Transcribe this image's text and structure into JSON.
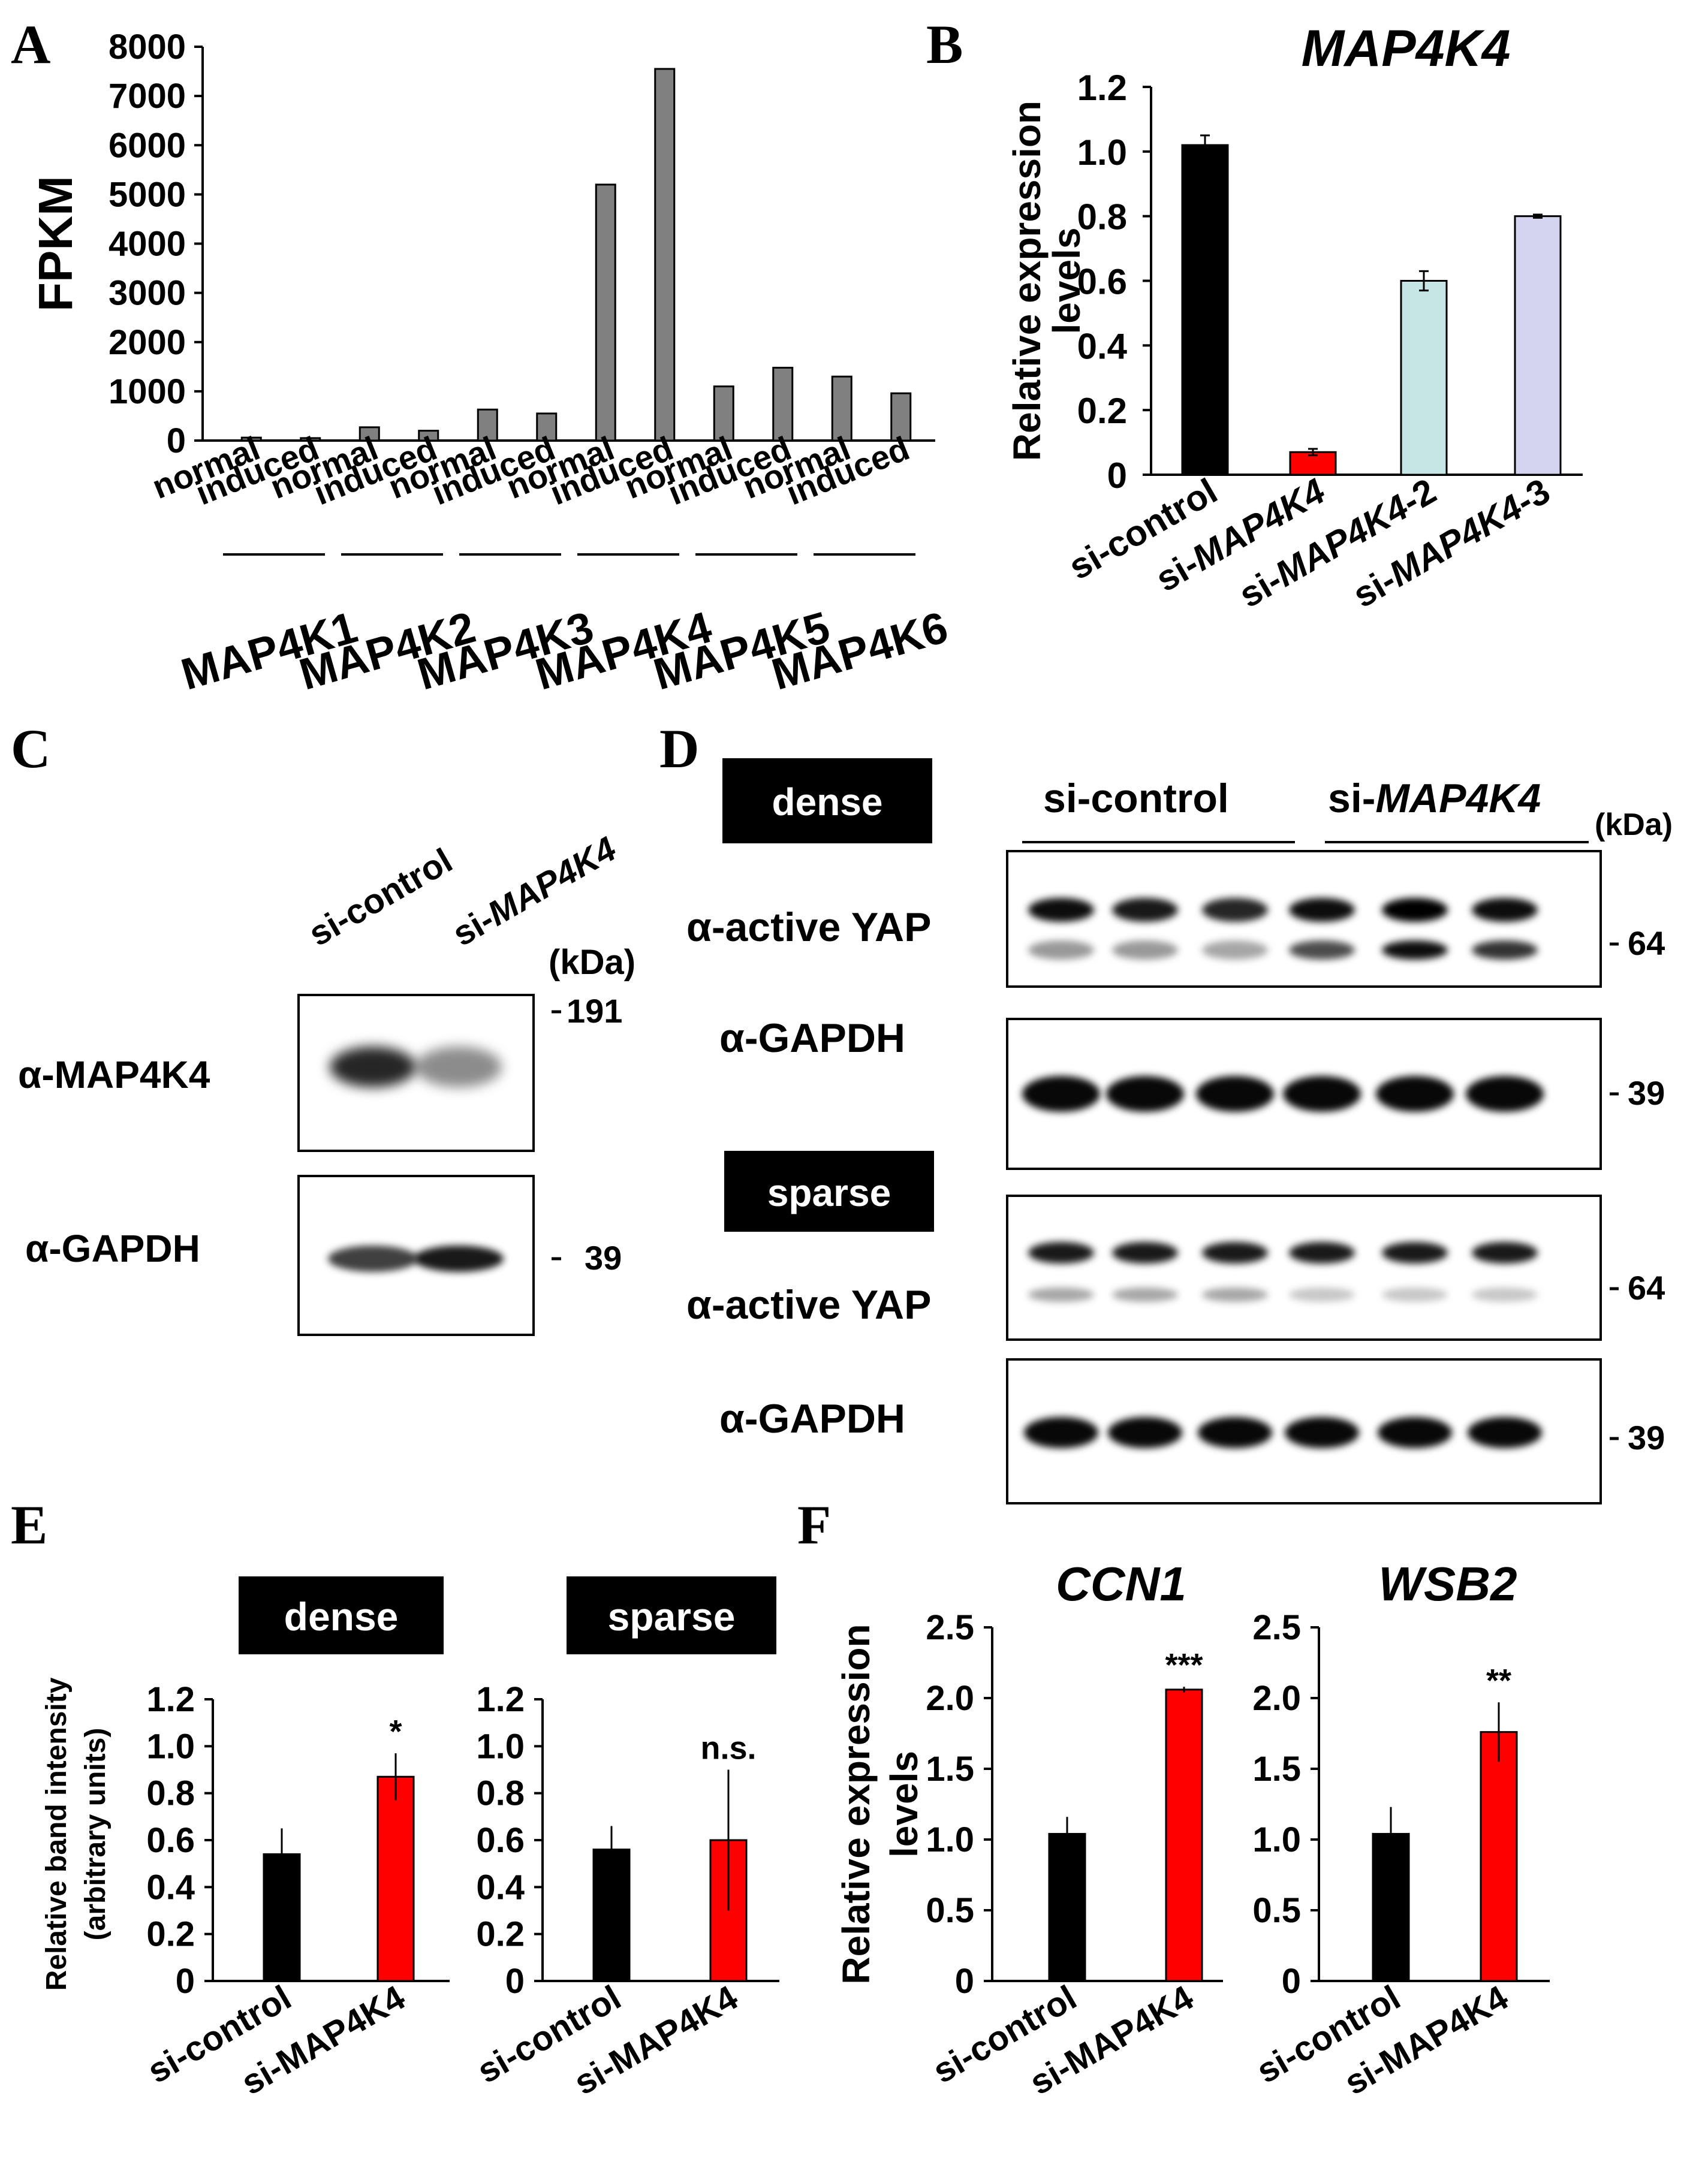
{
  "panels": {
    "A": "A",
    "B": "B",
    "C": "C",
    "D": "D",
    "E": "E",
    "F": "F"
  },
  "colors": {
    "grey": "#808080",
    "black": "#000000",
    "red": "#ff0000",
    "cyan": "#c6e6e6",
    "lavender": "#d4d4f0"
  },
  "chart_data": [
    {
      "id": "A",
      "type": "bar",
      "ylabel": "FPKM",
      "ylim": [
        0,
        8000
      ],
      "yticks": [
        0,
        1000,
        2000,
        3000,
        4000,
        5000,
        6000,
        7000,
        8000
      ],
      "categories": [
        "normal",
        "induced",
        "normal",
        "induced",
        "normal",
        "induced",
        "normal",
        "induced",
        "normal",
        "induced",
        "normal",
        "induced"
      ],
      "groups": [
        "MAP4K1",
        "MAP4K2",
        "MAP4K3",
        "MAP4K4",
        "MAP4K5",
        "MAP4K6"
      ],
      "values": [
        60,
        50,
        270,
        200,
        630,
        550,
        5200,
        7550,
        1100,
        1480,
        1300,
        960
      ]
    },
    {
      "id": "B",
      "type": "bar",
      "title": "MAP4K4",
      "ylabel": "Relative expression levels",
      "ylim": [
        0,
        1.2
      ],
      "yticks": [
        "0",
        "0.2",
        "0.4",
        "0.6",
        "0.8",
        "1.0",
        "1.2"
      ],
      "categories": [
        "si-control",
        "si-MAP4K4",
        "si-MAP4K4-2",
        "si-MAP4K4-3"
      ],
      "category_prefix": "si-",
      "category_italic": [
        "",
        "MAP4K4",
        "MAP4K4",
        "MAP4K4"
      ],
      "category_suffix": [
        "control",
        "",
        "-2",
        "-3"
      ],
      "values": [
        1.02,
        0.07,
        0.6,
        0.8
      ],
      "errors": [
        0.03,
        0.01,
        0.03,
        0.005
      ],
      "colors": [
        "#000000",
        "#ff0000",
        "#c6e6e6",
        "#d4d4f0"
      ]
    },
    {
      "id": "E-dense",
      "type": "bar",
      "title": "dense",
      "ylabel": "Relative band intensity",
      "ylabel2": "(arbitrary units)",
      "ylim": [
        0,
        1.2
      ],
      "yticks": [
        "0",
        "0.2",
        "0.4",
        "0.6",
        "0.8",
        "1.0",
        "1.2"
      ],
      "categories": [
        "si-control",
        "si-MAP4K4"
      ],
      "values": [
        0.54,
        0.87
      ],
      "errors": [
        0.11,
        0.1
      ],
      "colors": [
        "#000000",
        "#ff0000"
      ],
      "significance": "*"
    },
    {
      "id": "E-sparse",
      "type": "bar",
      "title": "sparse",
      "ylim": [
        0,
        1.2
      ],
      "yticks": [
        "0",
        "0.2",
        "0.4",
        "0.6",
        "0.8",
        "1.0",
        "1.2"
      ],
      "categories": [
        "si-control",
        "si-MAP4K4"
      ],
      "values": [
        0.56,
        0.6
      ],
      "errors": [
        0.1,
        0.3
      ],
      "colors": [
        "#000000",
        "#ff0000"
      ],
      "significance": "n.s."
    },
    {
      "id": "F-CCN1",
      "type": "bar",
      "title": "CCN1",
      "ylabel": "Relative expression",
      "ylabel2": "levels",
      "ylim": [
        0,
        2.5
      ],
      "yticks": [
        "0",
        "0.5",
        "1.0",
        "1.5",
        "2.0",
        "2.5"
      ],
      "categories": [
        "si-control",
        "si-MAP4K4"
      ],
      "values": [
        1.04,
        2.06
      ],
      "errors": [
        0.12,
        0.02
      ],
      "colors": [
        "#000000",
        "#ff0000"
      ],
      "significance": "***"
    },
    {
      "id": "F-WSB2",
      "type": "bar",
      "title": "WSB2",
      "ylim": [
        0,
        2.5
      ],
      "yticks": [
        "0",
        "0.5",
        "1.0",
        "1.5",
        "2.0",
        "2.5"
      ],
      "categories": [
        "si-control",
        "si-MAP4K4"
      ],
      "values": [
        1.04,
        1.76
      ],
      "errors": [
        0.19,
        0.21
      ],
      "colors": [
        "#000000",
        "#ff0000"
      ],
      "significance": "**"
    }
  ],
  "blotC": {
    "lanes": [
      {
        "prefix": "si-",
        "italic": "",
        "suffix": "control"
      },
      {
        "prefix": "si-",
        "italic": "MAP4K4",
        "suffix": ""
      }
    ],
    "kda": "(kDa)",
    "rows": [
      {
        "alpha": "α",
        "name": "-MAP4K4",
        "marker": "191",
        "intensity": [
          0.85,
          0.45
        ]
      },
      {
        "alpha": "α",
        "name": "-GAPDH",
        "marker": "39",
        "intensity": [
          0.75,
          0.9
        ]
      }
    ]
  },
  "blotD": {
    "badges": [
      "dense",
      "sparse"
    ],
    "groups": [
      {
        "prefix": "si-",
        "italic": "",
        "suffix": "control"
      },
      {
        "prefix": "si-",
        "italic": "MAP4K4",
        "suffix": ""
      }
    ],
    "kda": "(kDa)",
    "rows": [
      {
        "alpha": "α",
        "name": "-active YAP",
        "marker": "64"
      },
      {
        "alpha": "α",
        "name": "-GAPDH",
        "marker": "39"
      },
      {
        "alpha": "α",
        "name": "-active YAP",
        "marker": "64"
      },
      {
        "alpha": "α",
        "name": "-GAPDH",
        "marker": "39"
      }
    ]
  }
}
